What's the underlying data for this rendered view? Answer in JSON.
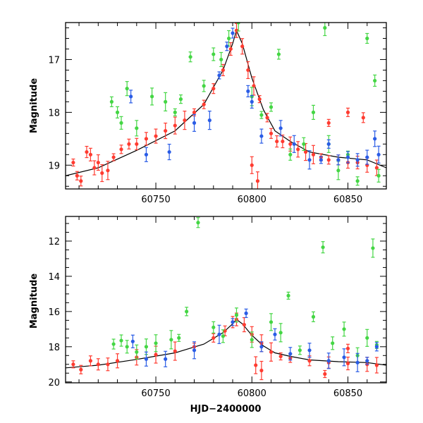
{
  "chart_data": [
    {
      "type": "scatter",
      "title": "",
      "xlabel": "",
      "ylabel": "Magnitude",
      "xlim": [
        60703,
        60870
      ],
      "ylim": [
        19.45,
        16.3
      ],
      "y_inverted": true,
      "xticks": [
        60750,
        60800,
        60850
      ],
      "yticks": [
        17,
        18,
        19
      ],
      "grid": false,
      "legend": "none",
      "series": [
        {
          "color": "#ff3b30",
          "points": [
            [
              60707,
              18.95
            ],
            [
              60709,
              19.2
            ],
            [
              60711,
              19.3
            ],
            [
              60714,
              18.75
            ],
            [
              60716,
              18.8
            ],
            [
              60718,
              19.05
            ],
            [
              60720,
              18.95
            ],
            [
              60722,
              19.15
            ],
            [
              60725,
              19.1
            ],
            [
              60728,
              18.85
            ],
            [
              60732,
              18.7
            ],
            [
              60736,
              18.6
            ],
            [
              60740,
              18.6
            ],
            [
              60745,
              18.5
            ],
            [
              60750,
              18.45
            ],
            [
              60755,
              18.35
            ],
            [
              60760,
              18.25
            ],
            [
              60765,
              18.15
            ],
            [
              60770,
              18.0
            ],
            [
              60775,
              17.85
            ],
            [
              60780,
              17.55
            ],
            [
              60785,
              17.2
            ],
            [
              60789,
              16.8
            ],
            [
              60792,
              16.45
            ],
            [
              60795,
              16.75
            ],
            [
              60798,
              17.2
            ],
            [
              60801,
              17.5
            ],
            [
              60804,
              17.75
            ],
            [
              60808,
              18.1
            ],
            [
              60810,
              18.4
            ],
            [
              60813,
              18.55
            ],
            [
              60816,
              18.55
            ],
            [
              60820,
              18.6
            ],
            [
              60824,
              18.7
            ],
            [
              60828,
              18.75
            ],
            [
              60832,
              18.8
            ],
            [
              60836,
              18.85
            ],
            [
              60840,
              18.9
            ],
            [
              60845,
              18.9
            ],
            [
              60850,
              18.95
            ],
            [
              60855,
              18.95
            ],
            [
              60860,
              19.0
            ],
            [
              60865,
              19.05
            ],
            [
              60800,
              19.0
            ],
            [
              60803,
              19.3
            ],
            [
              60840,
              18.2
            ],
            [
              60850,
              18.0
            ],
            [
              60858,
              18.1
            ]
          ]
        },
        {
          "color": "#44d644",
          "points": [
            [
              60727,
              17.8
            ],
            [
              60730,
              18.0
            ],
            [
              60732,
              18.2
            ],
            [
              60735,
              17.55
            ],
            [
              60740,
              18.3
            ],
            [
              60748,
              17.7
            ],
            [
              60755,
              17.8
            ],
            [
              60760,
              18.0
            ],
            [
              60763,
              17.75
            ],
            [
              60768,
              16.95
            ],
            [
              60775,
              17.5
            ],
            [
              60780,
              16.9
            ],
            [
              60784,
              17.0
            ],
            [
              60788,
              16.6
            ],
            [
              60793,
              16.3
            ],
            [
              60800,
              17.7
            ],
            [
              60805,
              18.05
            ],
            [
              60810,
              17.9
            ],
            [
              60814,
              16.9
            ],
            [
              60820,
              18.8
            ],
            [
              60827,
              18.6
            ],
            [
              60832,
              18.0
            ],
            [
              60838,
              16.4
            ],
            [
              60840,
              18.6
            ],
            [
              60845,
              19.1
            ],
            [
              60850,
              18.8
            ],
            [
              60855,
              19.3
            ],
            [
              60860,
              16.6
            ],
            [
              60864,
              17.4
            ],
            [
              60866,
              19.2
            ]
          ]
        },
        {
          "color": "#2a5ce6",
          "points": [
            [
              60737,
              17.7
            ],
            [
              60745,
              18.8
            ],
            [
              60757,
              18.75
            ],
            [
              60770,
              18.2
            ],
            [
              60778,
              18.15
            ],
            [
              60783,
              17.3
            ],
            [
              60787,
              16.75
            ],
            [
              60790,
              16.5
            ],
            [
              60798,
              17.6
            ],
            [
              60800,
              17.8
            ],
            [
              60805,
              18.45
            ],
            [
              60815,
              18.3
            ],
            [
              60822,
              18.6
            ],
            [
              60830,
              18.9
            ],
            [
              60836,
              18.9
            ],
            [
              60840,
              18.6
            ],
            [
              60845,
              18.9
            ],
            [
              60850,
              18.85
            ],
            [
              60855,
              18.9
            ],
            [
              60860,
              18.85
            ],
            [
              60864,
              18.5
            ],
            [
              60866,
              18.8
            ]
          ]
        }
      ],
      "model_curve": [
        [
          60703,
          19.2
        ],
        [
          60720,
          19.05
        ],
        [
          60740,
          18.72
        ],
        [
          60760,
          18.35
        ],
        [
          60775,
          17.85
        ],
        [
          60785,
          17.2
        ],
        [
          60790,
          16.7
        ],
        [
          60792,
          16.45
        ],
        [
          60795,
          16.7
        ],
        [
          60800,
          17.35
        ],
        [
          60806,
          17.95
        ],
        [
          60812,
          18.35
        ],
        [
          60820,
          18.55
        ],
        [
          60830,
          18.75
        ],
        [
          60845,
          18.85
        ],
        [
          60860,
          18.9
        ],
        [
          60870,
          19.05
        ]
      ]
    },
    {
      "type": "scatter",
      "title": "",
      "xlabel": "HJD−2400000",
      "ylabel": "Magnitude",
      "xlim": [
        60703,
        60870
      ],
      "ylim": [
        20.05,
        10.6
      ],
      "y_inverted": true,
      "xticks": [
        60750,
        60800,
        60850
      ],
      "yticks": [
        12,
        14,
        16,
        18,
        20
      ],
      "grid": false,
      "legend": "none",
      "series": [
        {
          "color": "#ff3b30",
          "points": [
            [
              60707,
              19.0
            ],
            [
              60711,
              19.3
            ],
            [
              60716,
              18.8
            ],
            [
              60720,
              19.0
            ],
            [
              60725,
              19.0
            ],
            [
              60730,
              18.8
            ],
            [
              60740,
              18.6
            ],
            [
              60750,
              18.45
            ],
            [
              60760,
              18.25
            ],
            [
              60770,
              18.0
            ],
            [
              60780,
              17.5
            ],
            [
              60786,
              17.1
            ],
            [
              60790,
              16.6
            ],
            [
              60792,
              16.45
            ],
            [
              60796,
              16.75
            ],
            [
              60800,
              17.3
            ],
            [
              60805,
              17.8
            ],
            [
              60810,
              18.3
            ],
            [
              60815,
              18.55
            ],
            [
              60820,
              18.65
            ],
            [
              60830,
              18.8
            ],
            [
              60840,
              18.9
            ],
            [
              60850,
              18.95
            ],
            [
              60860,
              19.0
            ],
            [
              60865,
              19.05
            ],
            [
              60802,
              19.05
            ],
            [
              60805,
              19.35
            ],
            [
              60838,
              19.55
            ],
            [
              60850,
              18.1
            ]
          ]
        },
        {
          "color": "#44d644",
          "points": [
            [
              60728,
              17.85
            ],
            [
              60732,
              17.65
            ],
            [
              60735,
              18.0
            ],
            [
              60740,
              18.3
            ],
            [
              60745,
              18.0
            ],
            [
              60750,
              17.8
            ],
            [
              60758,
              17.6
            ],
            [
              60762,
              17.5
            ],
            [
              60766,
              16.0
            ],
            [
              60772,
              10.95
            ],
            [
              60780,
              16.9
            ],
            [
              60785,
              17.4
            ],
            [
              60792,
              16.2
            ],
            [
              60800,
              17.6
            ],
            [
              60810,
              16.6
            ],
            [
              60815,
              17.2
            ],
            [
              60819,
              15.1
            ],
            [
              60825,
              18.2
            ],
            [
              60832,
              16.3
            ],
            [
              60837,
              12.35
            ],
            [
              60842,
              17.8
            ],
            [
              60848,
              17.0
            ],
            [
              60855,
              18.5
            ],
            [
              60860,
              17.5
            ],
            [
              60863,
              12.4
            ],
            [
              60865,
              17.9
            ]
          ]
        },
        {
          "color": "#2a5ce6",
          "points": [
            [
              60738,
              17.7
            ],
            [
              60745,
              18.7
            ],
            [
              60755,
              18.7
            ],
            [
              60770,
              18.2
            ],
            [
              60783,
              17.3
            ],
            [
              60790,
              16.6
            ],
            [
              60797,
              16.1
            ],
            [
              60805,
              18.0
            ],
            [
              60812,
              17.3
            ],
            [
              60820,
              18.4
            ],
            [
              60830,
              18.2
            ],
            [
              60840,
              18.8
            ],
            [
              60848,
              18.6
            ],
            [
              60855,
              18.9
            ],
            [
              60860,
              18.8
            ],
            [
              60865,
              18.0
            ]
          ]
        }
      ],
      "model_curve": [
        [
          60703,
          19.2
        ],
        [
          60720,
          19.05
        ],
        [
          60740,
          18.72
        ],
        [
          60760,
          18.35
        ],
        [
          60775,
          17.85
        ],
        [
          60785,
          17.2
        ],
        [
          60790,
          16.7
        ],
        [
          60792,
          16.45
        ],
        [
          60795,
          16.7
        ],
        [
          60800,
          17.35
        ],
        [
          60806,
          17.95
        ],
        [
          60812,
          18.35
        ],
        [
          60820,
          18.55
        ],
        [
          60830,
          18.75
        ],
        [
          60845,
          18.85
        ],
        [
          60860,
          18.9
        ],
        [
          60870,
          19.05
        ]
      ]
    }
  ]
}
